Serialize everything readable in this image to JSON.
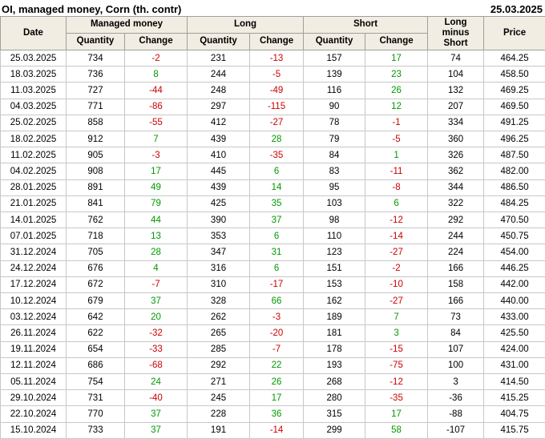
{
  "page": {
    "title": "OI, managed money, Corn (th. contr)",
    "report_date": "25.03.2025"
  },
  "colors": {
    "positive": "#009900",
    "negative": "#cc0000",
    "header_bg": "#f1ede2",
    "header_border": "#9f9f9f",
    "grid_border": "#c8c8c8"
  },
  "chart_data": {
    "type": "table",
    "title": "OI, managed money, Corn (th. contr)",
    "column_groups": [
      "Managed money",
      "Long",
      "Short"
    ],
    "columns": [
      "Date",
      "Quantity",
      "Change",
      "Quantity",
      "Change",
      "Quantity",
      "Change",
      "Long minus Short",
      "Price"
    ],
    "signed_color_columns": [
      2,
      4,
      6
    ],
    "rows": [
      [
        "25.03.2025",
        734,
        -2,
        231,
        -13,
        157,
        17,
        74,
        "464.25"
      ],
      [
        "18.03.2025",
        736,
        8,
        244,
        -5,
        139,
        23,
        104,
        "458.50"
      ],
      [
        "11.03.2025",
        727,
        -44,
        248,
        -49,
        116,
        26,
        132,
        "469.25"
      ],
      [
        "04.03.2025",
        771,
        -86,
        297,
        -115,
        90,
        12,
        207,
        "469.50"
      ],
      [
        "25.02.2025",
        858,
        -55,
        412,
        -27,
        78,
        -1,
        334,
        "491.25"
      ],
      [
        "18.02.2025",
        912,
        7,
        439,
        28,
        79,
        -5,
        360,
        "496.25"
      ],
      [
        "11.02.2025",
        905,
        -3,
        410,
        -35,
        84,
        1,
        326,
        "487.50"
      ],
      [
        "04.02.2025",
        908,
        17,
        445,
        6,
        83,
        -11,
        362,
        "482.00"
      ],
      [
        "28.01.2025",
        891,
        49,
        439,
        14,
        95,
        -8,
        344,
        "486.50"
      ],
      [
        "21.01.2025",
        841,
        79,
        425,
        35,
        103,
        6,
        322,
        "484.25"
      ],
      [
        "14.01.2025",
        762,
        44,
        390,
        37,
        98,
        -12,
        292,
        "470.50"
      ],
      [
        "07.01.2025",
        718,
        13,
        353,
        6,
        110,
        -14,
        244,
        "450.75"
      ],
      [
        "31.12.2024",
        705,
        28,
        347,
        31,
        123,
        -27,
        224,
        "454.00"
      ],
      [
        "24.12.2024",
        676,
        4,
        316,
        6,
        151,
        -2,
        166,
        "446.25"
      ],
      [
        "17.12.2024",
        672,
        -7,
        310,
        -17,
        153,
        -10,
        158,
        "442.00"
      ],
      [
        "10.12.2024",
        679,
        37,
        328,
        66,
        162,
        -27,
        166,
        "440.00"
      ],
      [
        "03.12.2024",
        642,
        20,
        262,
        -3,
        189,
        7,
        73,
        "433.00"
      ],
      [
        "26.11.2024",
        622,
        -32,
        265,
        -20,
        181,
        3,
        84,
        "425.50"
      ],
      [
        "19.11.2024",
        654,
        -33,
        285,
        -7,
        178,
        -15,
        107,
        "424.00"
      ],
      [
        "12.11.2024",
        686,
        -68,
        292,
        22,
        193,
        -75,
        100,
        "431.00"
      ],
      [
        "05.11.2024",
        754,
        24,
        271,
        26,
        268,
        -12,
        3,
        "414.50"
      ],
      [
        "29.10.2024",
        731,
        -40,
        245,
        17,
        280,
        -35,
        -36,
        "415.25"
      ],
      [
        "22.10.2024",
        770,
        37,
        228,
        36,
        315,
        17,
        -88,
        "404.75"
      ],
      [
        "15.10.2024",
        733,
        37,
        191,
        -14,
        299,
        58,
        -107,
        "415.75"
      ]
    ]
  }
}
